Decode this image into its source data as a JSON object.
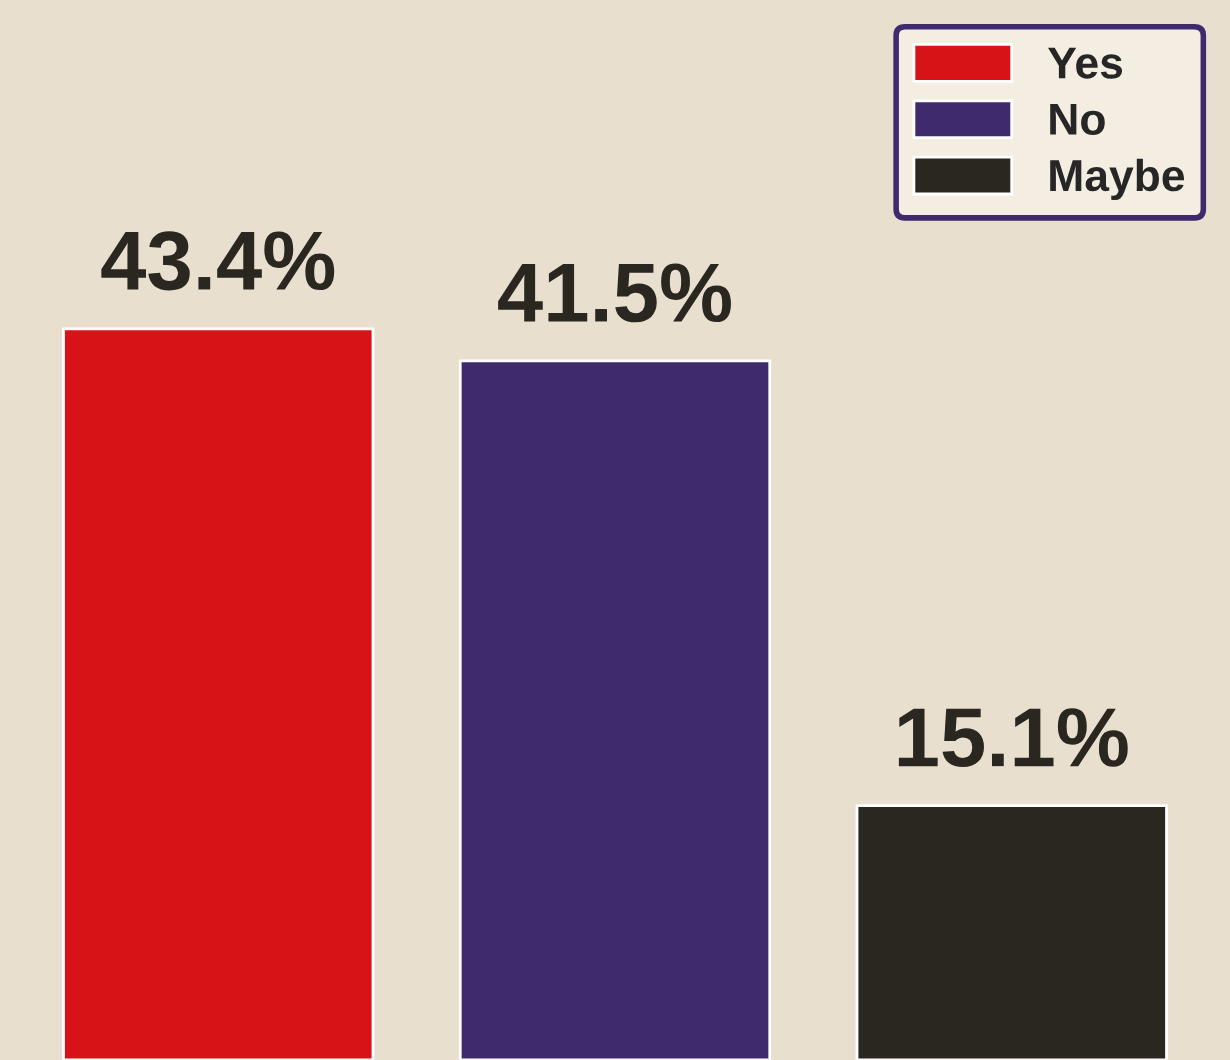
{
  "chart_data": {
    "type": "bar",
    "categories": [
      null,
      null,
      null
    ],
    "series": [
      {
        "name": "Yes",
        "color": "#d71318",
        "values": [
          43.4,
          null,
          null
        ],
        "value_labels": [
          "43.4%",
          null,
          null
        ]
      },
      {
        "name": "No",
        "color": "#3f2a6e",
        "values": [
          null,
          41.5,
          null
        ],
        "value_labels": [
          null,
          "41.5%",
          null
        ]
      },
      {
        "name": "Maybe",
        "color": "#2a2620",
        "values": [
          null,
          null,
          15.1
        ],
        "value_labels": [
          null,
          null,
          "15.1%"
        ]
      }
    ],
    "stacked": true,
    "legend": "top right",
    "grid": false
  }
}
